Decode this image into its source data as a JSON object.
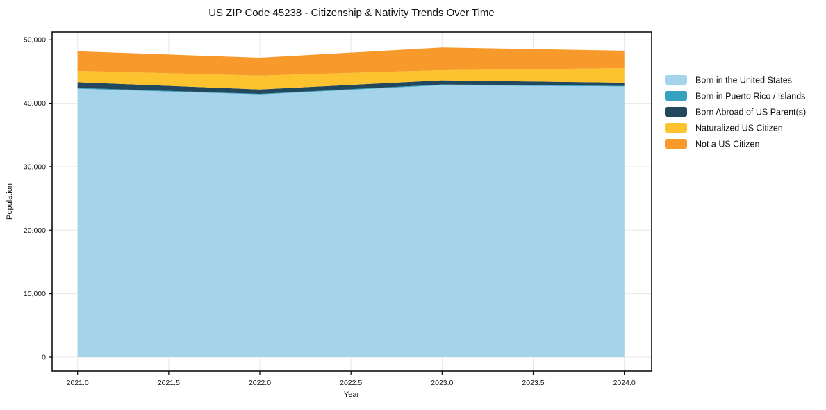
{
  "chart_data": {
    "type": "area",
    "stacked": true,
    "title": "US ZIP Code 45238 - Citizenship & Nativity Trends Over Time",
    "xlabel": "Year",
    "ylabel": "Population",
    "x": [
      2021,
      2022,
      2023,
      2024
    ],
    "series": [
      {
        "name": "Born in the United States",
        "color": "#a5d3e9",
        "values": [
          42300,
          41400,
          42850,
          42650
        ]
      },
      {
        "name": "Born in Puerto Rico / Islands",
        "color": "#35a0c0",
        "values": [
          120,
          90,
          100,
          90
        ]
      },
      {
        "name": "Born Abroad of US Parent(s)",
        "color": "#21485c",
        "values": [
          890,
          690,
          660,
          500
        ]
      },
      {
        "name": "Naturalized US Citizen",
        "color": "#fcc32f",
        "values": [
          1790,
          2190,
          1600,
          2300
        ]
      },
      {
        "name": "Not a US Citizen",
        "color": "#f8992b",
        "values": [
          3100,
          2810,
          3590,
          2740
        ]
      }
    ],
    "totals": [
      48200,
      47180,
      48800,
      48280
    ],
    "x_ticks": [
      2021.0,
      2021.5,
      2022.0,
      2022.5,
      2023.0,
      2023.5,
      2024.0
    ],
    "x_tick_labels": [
      "2021.0",
      "2021.5",
      "2022.0",
      "2022.5",
      "2023.0",
      "2023.5",
      "2024.0"
    ],
    "y_ticks": [
      0,
      10000,
      20000,
      30000,
      40000,
      50000
    ],
    "y_tick_labels": [
      "0",
      "10,000",
      "20,000",
      "30,000",
      "40,000",
      "50,000"
    ],
    "xlim": [
      2020.86,
      2024.15
    ],
    "ylim": [
      -2190,
      51230
    ],
    "grid": true,
    "legend_position": "right-outside",
    "colors": {
      "background": "#ffffff",
      "gridline": "#e7e7e7",
      "spine": "#000000"
    }
  }
}
